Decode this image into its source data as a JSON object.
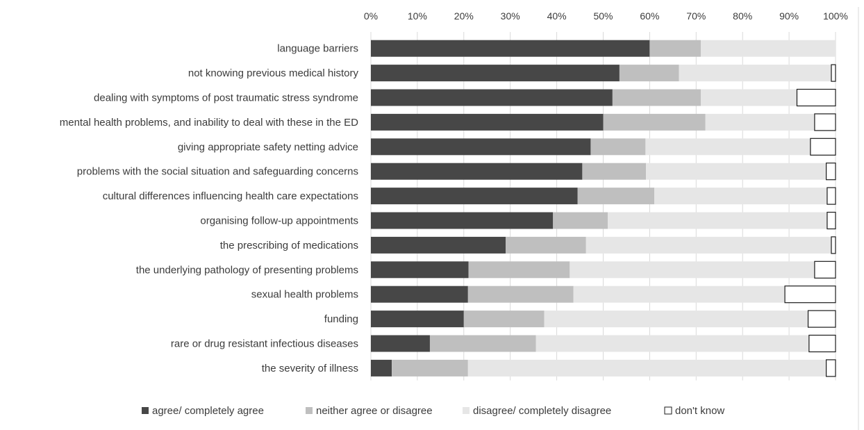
{
  "chart_data": {
    "type": "bar",
    "orientation": "horizontal",
    "stacked": true,
    "title": "",
    "xlabel": "",
    "ylabel": "",
    "xlim": [
      0,
      100
    ],
    "x_ticks": [
      "0%",
      "10%",
      "20%",
      "30%",
      "40%",
      "50%",
      "60%",
      "70%",
      "80%",
      "90%",
      "100%"
    ],
    "x_axis_position": "top",
    "grid": true,
    "legend_position": "bottom",
    "categories": [
      "language barriers",
      "not knowing previous medical history",
      "dealing with symptoms of post traumatic stress syndrome",
      "mental health problems, and inability to deal with these in the ED",
      "giving appropriate safety netting advice",
      "problems with the social situation and safeguarding concerns",
      "cultural differences influencing health care expectations",
      "organising follow-up appointments",
      "the prescribing of medications",
      "the underlying pathology of presenting problems",
      "sexual health problems",
      "funding",
      "rare or drug resistant infectious diseases",
      "the severity of illness"
    ],
    "series": [
      {
        "name": "agree/ completely agree",
        "color": "#474747",
        "legend_marker": "■",
        "values": [
          60,
          53.5,
          52,
          50,
          47.3,
          45.5,
          44.5,
          39.2,
          29,
          21,
          20.9,
          20,
          12.7,
          4.5
        ]
      },
      {
        "name": "neither agree or disagree",
        "color": "#bfbfbf",
        "legend_marker": "■",
        "values": [
          11,
          12.8,
          19,
          22,
          11.8,
          13.7,
          16.5,
          11.8,
          17.3,
          21.8,
          22.7,
          17.3,
          22.8,
          16.4
        ]
      },
      {
        "name": "disagree/ completely disagree",
        "color": "#e6e6e6",
        "legend_marker": "■",
        "values": [
          29,
          32.8,
          20.7,
          23.5,
          35.5,
          38.8,
          37.2,
          47.2,
          52.8,
          52.7,
          45.5,
          56.8,
          58.8,
          77.1
        ]
      },
      {
        "name": "don't know",
        "color": "#ffffff",
        "legend_marker": "□",
        "values": [
          0,
          0.9,
          8.3,
          4.5,
          5.4,
          2,
          1.8,
          1.8,
          0.9,
          4.5,
          10.9,
          5.9,
          5.7,
          2
        ]
      }
    ]
  }
}
